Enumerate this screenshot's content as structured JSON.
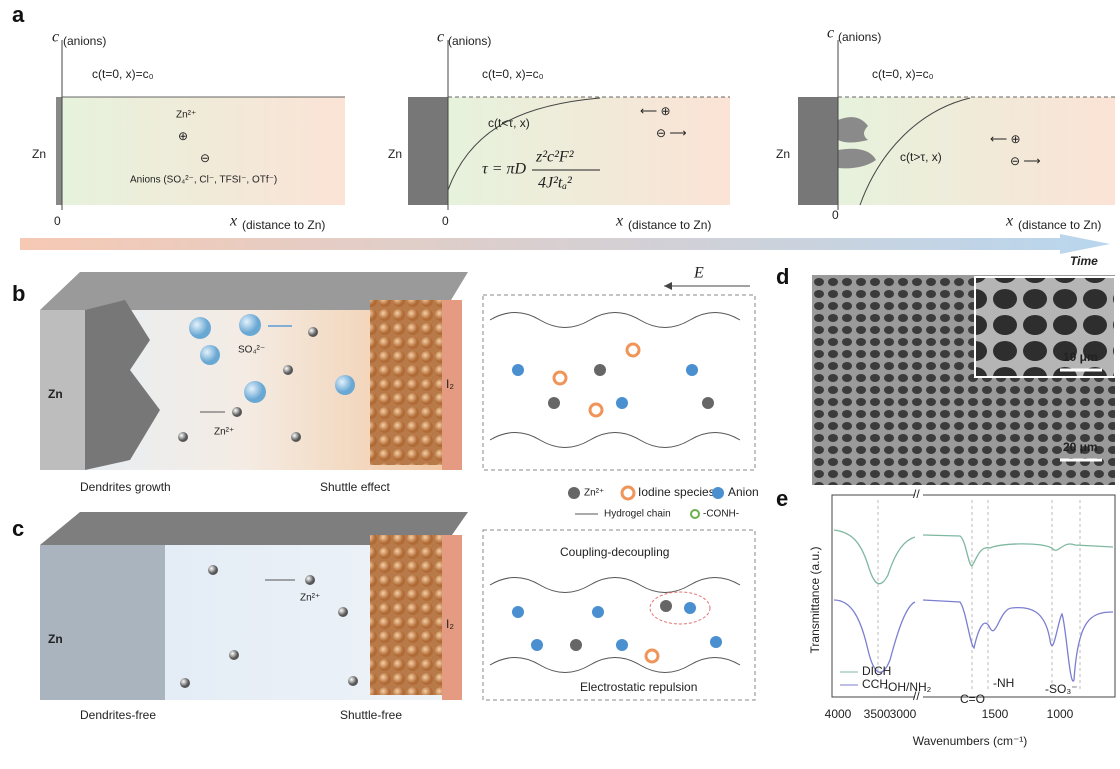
{
  "panel_a": {
    "label": "a",
    "steps": [
      {
        "y_axis": "c",
        "y_axis_sub": "(anions)",
        "initial": "c(t=0, x)=c₀",
        "electrode": "Zn",
        "origin": "0",
        "x_axis": "x",
        "x_axis_sub": "(distance to Zn)"
      },
      {
        "y_axis": "c",
        "y_axis_sub": "(anions)",
        "initial": "c(t=0, x)=c₀",
        "electrode": "Zn",
        "origin": "0",
        "x_axis": "x",
        "x_axis_sub": "(distance to Zn)"
      },
      {
        "y_axis": "c",
        "y_axis_sub": "(anions)",
        "initial": "c(t=0, x)=c₀",
        "electrode": "Zn",
        "origin": "0",
        "x_axis": "x",
        "x_axis_sub": "(distance to Zn)"
      }
    ],
    "cation": "Zn²⁺",
    "anions": "Anions (SO₄²⁻, Cl⁻, TFSI⁻, OTf⁻)",
    "profile_early": "c(t<τ, x)",
    "equation": {
      "lhs": "τ = πD",
      "numerator": "z²c²F²",
      "denominator": "4J²tₐ²"
    },
    "profile_late": "c(t>τ, x)",
    "time": "Time"
  },
  "panel_b": {
    "label": "b",
    "electrode": "Zn",
    "anion": "SO₄²⁻",
    "cation": "Zn²⁺",
    "cathode": "I₂",
    "field": "E",
    "left_caption": "Dendrites growth",
    "right_caption": "Shuttle effect"
  },
  "legend": {
    "items": [
      "Zn²⁺",
      "Iodine species",
      "Anion"
    ],
    "chain": "Hydrogel chain",
    "group": "-CONH-"
  },
  "panel_c": {
    "label": "c",
    "electrode": "Zn",
    "cation": "Zn²⁺",
    "cathode": "I₂",
    "coupling": "Coupling-decoupling",
    "repulsion": "Electrostatic repulsion",
    "left_caption": "Dendrites-free",
    "right_caption": "Shuttle-free"
  },
  "panel_d": {
    "label": "d",
    "inset_scale": "10 μm",
    "scale": "20 μm"
  },
  "panel_e": {
    "label": "e",
    "y_axis": "Transmittance (a.u.)",
    "x_axis": "Wavenumbers (cm⁻¹)",
    "xticks": [
      4000,
      3500,
      3000,
      1500,
      1000
    ],
    "peaks": [
      "-OH/NH₂",
      "C=O",
      "-NH",
      "-SO₃⁻"
    ],
    "series": [
      "DICH",
      "CCH"
    ]
  }
}
